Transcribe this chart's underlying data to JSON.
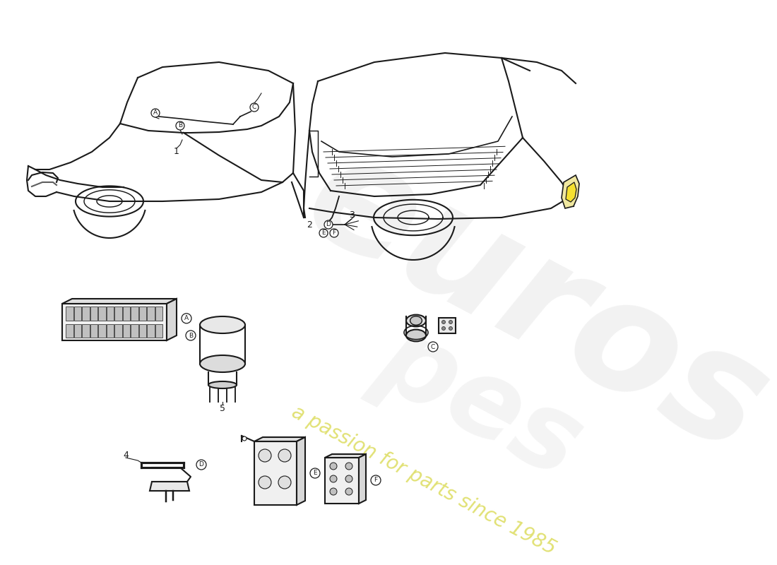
{
  "bg_color": "#ffffff",
  "line_color": "#1a1a1a",
  "lw": 1.5,
  "fig_width": 11.0,
  "fig_height": 8.0,
  "dpi": 100,
  "watermark_color": "#cccccc",
  "watermark_yellow": "#cccc00",
  "labels": {
    "A_car": "A",
    "B_car": "B",
    "C_car": "C",
    "D_car": "D",
    "E_car": "E",
    "F_car": "F",
    "num1": "1",
    "num2": "2",
    "num3": "3",
    "num4": "4",
    "num5": "5",
    "partA": "A",
    "partB": "B",
    "partC": "C",
    "partD": "D",
    "partE": "E",
    "partF": "F"
  }
}
